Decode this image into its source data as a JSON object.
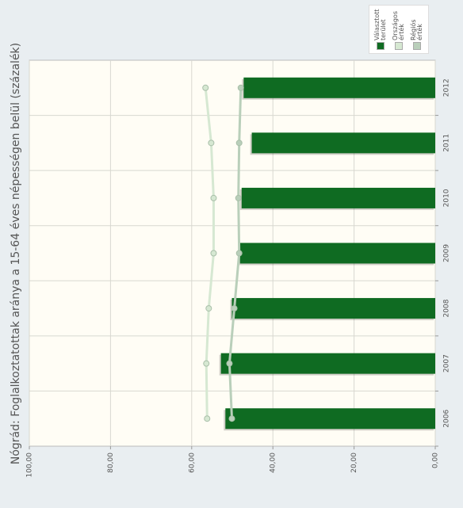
{
  "chart_data": {
    "type": "bar",
    "orientation": "horizontal",
    "title": "Nógrád: Foglalkoztatottak aránya a 15-64 éves népességen belül (százalék)",
    "categories": [
      "2006",
      "2007",
      "2008",
      "2009",
      "2010",
      "2011",
      "2012"
    ],
    "series": [
      {
        "name": "Választott terület",
        "color": "#0f6b22",
        "kind": "bar",
        "values": [
          51.7,
          52.8,
          50.1,
          48.1,
          47.7,
          45.2,
          47.2
        ]
      },
      {
        "name": "Országos érték",
        "color": "#d6e8d2",
        "kind": "line",
        "values": [
          56.2,
          56.4,
          55.8,
          54.6,
          54.6,
          55.2,
          56.6
        ]
      },
      {
        "name": "Régiós érték",
        "color": "#b9cfba",
        "kind": "line",
        "values": [
          50.1,
          50.7,
          49.5,
          48.3,
          48.5,
          48.3,
          47.9
        ]
      }
    ],
    "xlim": [
      0,
      100
    ],
    "xticks": [
      {
        "value": 0,
        "label": "0,00"
      },
      {
        "value": 20,
        "label": "20,00"
      },
      {
        "value": 40,
        "label": "40,00"
      },
      {
        "value": 60,
        "label": "60,00"
      },
      {
        "value": 80,
        "label": "80,00"
      },
      {
        "value": 100,
        "label": "100,00"
      }
    ],
    "grid": true
  }
}
